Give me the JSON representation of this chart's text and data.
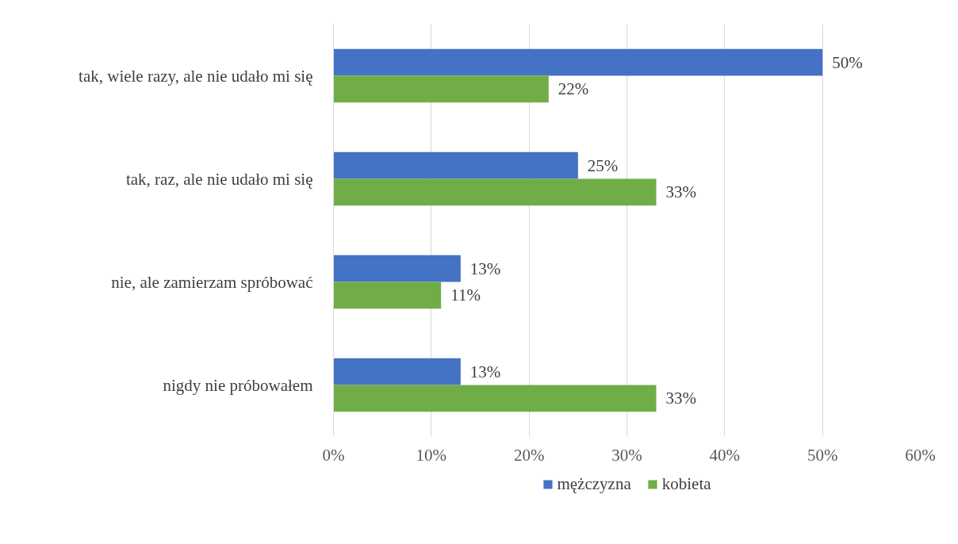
{
  "chart_data": {
    "type": "bar",
    "orientation": "horizontal",
    "categories": [
      "tak, wiele razy, ale nie udało mi się",
      "tak, raz, ale nie udało mi się",
      "nie, ale zamierzam spróbować",
      "nigdy nie próbowałem"
    ],
    "series": [
      {
        "name": "mężczyzna",
        "color": "#4472c4",
        "values": [
          50,
          25,
          13,
          13
        ],
        "value_labels": [
          "50%",
          "25%",
          "13%",
          "13%"
        ]
      },
      {
        "name": "kobieta",
        "color": "#70ad47",
        "values": [
          22,
          33,
          11,
          33
        ],
        "value_labels": [
          "22%",
          "33%",
          "11%",
          "33%"
        ]
      }
    ],
    "xlim": [
      0,
      60
    ],
    "xticks": [
      {
        "value": 0,
        "label": "0%"
      },
      {
        "value": 10,
        "label": "10%"
      },
      {
        "value": 20,
        "label": "20%"
      },
      {
        "value": 30,
        "label": "30%"
      },
      {
        "value": 40,
        "label": "40%"
      },
      {
        "value": 50,
        "label": "50%"
      },
      {
        "value": 60,
        "label": "60%"
      }
    ],
    "grid": "x",
    "legend": "bottom"
  }
}
